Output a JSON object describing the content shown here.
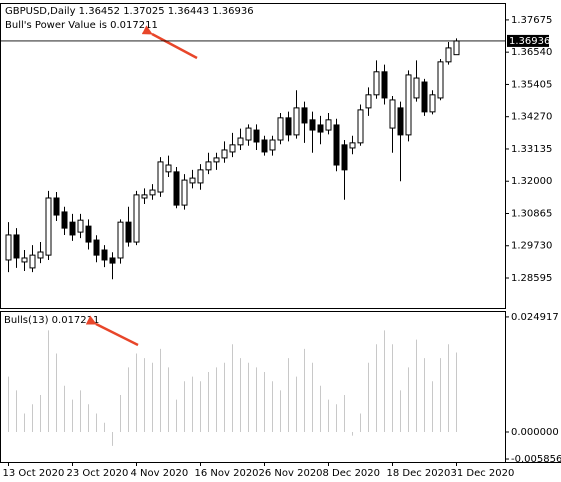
{
  "chart_data": {
    "type": "candlestick",
    "title": "GBPUSD,Daily  1.36452 1.37025 1.36443 1.36936",
    "annotation": "Bull's Power Value is 0.017211",
    "categories": [
      "13 Oct 2020",
      null,
      null,
      null,
      null,
      null,
      null,
      null,
      "23 Oct 2020",
      null,
      null,
      null,
      null,
      null,
      null,
      null,
      "4 Nov 2020",
      null,
      null,
      null,
      null,
      null,
      null,
      null,
      "16 Nov 2020",
      null,
      null,
      null,
      null,
      null,
      null,
      null,
      "26 Nov 2020",
      null,
      null,
      null,
      null,
      null,
      null,
      null,
      "8 Dec 2020",
      null,
      null,
      null,
      null,
      null,
      null,
      null,
      "18 Dec 2020",
      null,
      null,
      null,
      null,
      null,
      null,
      null,
      "31 Dec 2020"
    ],
    "open": [
      1.2923,
      1.3011,
      1.2916,
      1.2895,
      1.293,
      1.294,
      1.3141,
      1.3092,
      1.3056,
      1.3021,
      1.3042,
      1.2993,
      1.2958,
      1.293,
      1.293,
      1.3056,
      1.2986,
      1.3141,
      1.3152,
      1.3162,
      1.3233,
      1.3233,
      1.3116,
      1.3194,
      1.3194,
      1.324,
      1.3268,
      1.3282,
      1.3303,
      1.3328,
      1.3345,
      1.338,
      1.3345,
      1.331,
      1.3345,
      1.3423,
      1.3363,
      1.3458,
      1.3416,
      1.3398,
      1.338,
      1.3398,
      1.3328,
      1.3317,
      1.3335,
      1.3458,
      1.3504,
      1.3585,
      1.3387,
      1.3458,
      1.3363,
      1.3493,
      1.3549,
      1.3444,
      1.3493,
      1.362,
      1.36452
    ],
    "high": [
      1.3056,
      1.3035,
      1.2958,
      1.2975,
      1.2986,
      1.3166,
      1.3162,
      1.311,
      1.3085,
      1.3085,
      1.3066,
      1.301,
      1.2975,
      1.295,
      1.3066,
      1.311,
      1.3166,
      1.3175,
      1.319,
      1.3285,
      1.329,
      1.325,
      1.3225,
      1.324,
      1.326,
      1.33,
      1.33,
      1.334,
      1.337,
      1.3385,
      1.34,
      1.34,
      1.336,
      1.336,
      1.344,
      1.3445,
      1.352,
      1.348,
      1.3445,
      1.343,
      1.344,
      1.342,
      1.3345,
      1.336,
      1.347,
      1.353,
      1.3625,
      1.361,
      1.35,
      1.348,
      1.359,
      1.3625,
      1.356,
      1.352,
      1.363,
      1.369,
      1.37025
    ],
    "low": [
      1.288,
      1.2895,
      1.2884,
      1.288,
      1.2912,
      1.2923,
      1.306,
      1.3011,
      1.299,
      1.3,
      1.296,
      1.2915,
      1.2898,
      1.2855,
      1.291,
      1.297,
      1.2975,
      1.312,
      1.3135,
      1.3145,
      1.3215,
      1.3105,
      1.31,
      1.3175,
      1.317,
      1.3225,
      1.324,
      1.3265,
      1.3285,
      1.331,
      1.3325,
      1.331,
      1.329,
      1.329,
      1.333,
      1.334,
      1.335,
      1.3335,
      1.33,
      1.333,
      1.3365,
      1.3235,
      1.3135,
      1.3295,
      1.3325,
      1.343,
      1.349,
      1.347,
      1.33,
      1.32,
      1.334,
      1.348,
      1.343,
      1.3435,
      1.3485,
      1.361,
      1.36443
    ],
    "close": [
      1.3011,
      1.293,
      1.293,
      1.294,
      1.2951,
      1.3141,
      1.3081,
      1.3035,
      1.3011,
      1.3063,
      1.2986,
      1.294,
      1.2923,
      1.2912,
      1.3056,
      1.2986,
      1.3152,
      1.3152,
      1.3169,
      1.3268,
      1.3257,
      1.3116,
      1.3204,
      1.3211,
      1.324,
      1.3268,
      1.3282,
      1.331,
      1.3328,
      1.3352,
      1.3387,
      1.3338,
      1.3303,
      1.3345,
      1.3423,
      1.3363,
      1.3458,
      1.3405,
      1.338,
      1.3373,
      1.3416,
      1.3257,
      1.324,
      1.3335,
      1.3451,
      1.3504,
      1.3585,
      1.3493,
      1.3486,
      1.3363,
      1.3574,
      1.3563,
      1.3444,
      1.3504,
      1.362,
      1.3669,
      1.36936
    ],
    "up_color": "#ffffff",
    "down_color": "#000000",
    "ylim": [
      1.2754,
      1.3827
    ],
    "yticks": [
      {
        "value": 1.37675,
        "label": "1.37675"
      },
      {
        "value": 1.3654,
        "label": "1.36540"
      },
      {
        "value": 1.35405,
        "label": "1.35405"
      },
      {
        "value": 1.3427,
        "label": "1.34270"
      },
      {
        "value": 1.33135,
        "label": "1.33135"
      },
      {
        "value": 1.32,
        "label": "1.32000"
      },
      {
        "value": 1.30865,
        "label": "1.30865"
      },
      {
        "value": 1.2973,
        "label": "1.29730"
      },
      {
        "value": 1.28595,
        "label": "1.28595"
      }
    ],
    "last_price": 1.36936,
    "indicator": {
      "type": "bar",
      "title": "Bulls(13) 0.017211",
      "color": "#c8c8c8",
      "values": [
        0.012,
        0.009,
        0.004,
        0.006,
        0.008,
        0.022,
        0.017,
        0.01,
        0.007,
        0.009,
        0.006,
        0.004,
        0.002,
        -0.003,
        0.008,
        0.014,
        0.017,
        0.016,
        0.015,
        0.018,
        0.014,
        0.007,
        0.011,
        0.012,
        0.011,
        0.013,
        0.014,
        0.015,
        0.019,
        0.016,
        0.015,
        0.014,
        0.013,
        0.011,
        0.009,
        0.016,
        0.012,
        0.018,
        0.015,
        0.01,
        0.007,
        0.006,
        0.008,
        -0.0008,
        0.004,
        0.015,
        0.019,
        0.022,
        0.019,
        0.009,
        0.014,
        0.02,
        0.016,
        0.011,
        0.016,
        0.019,
        0.017211
      ],
      "ylim": [
        -0.0065,
        0.0262
      ],
      "yticks": [
        0.024917,
        {
          "value": 0,
          "label": "0.000000"
        },
        -0.005856
      ]
    }
  }
}
